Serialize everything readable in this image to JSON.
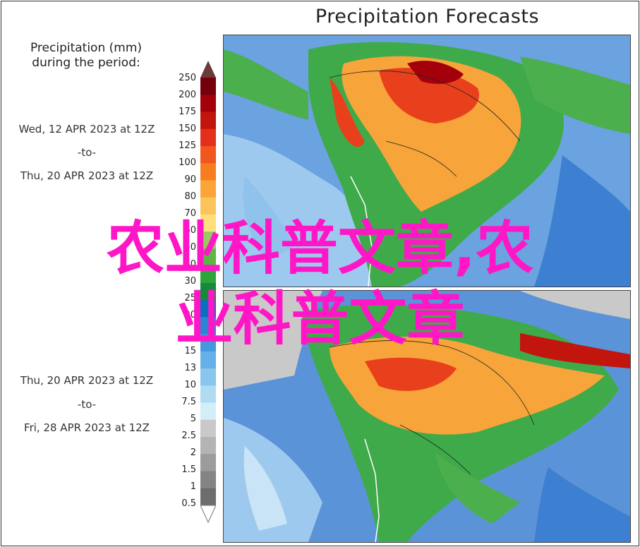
{
  "title": "Precipitation Forecasts",
  "legend": {
    "title_line1": "Precipitation (mm)",
    "title_line2": "during the period:",
    "ticks": [
      "250",
      "200",
      "175",
      "150",
      "125",
      "100",
      "90",
      "80",
      "70",
      "60",
      "50",
      "40",
      "30",
      "25",
      "20",
      "15",
      "13",
      "10",
      "7.5",
      "5",
      "2.5",
      "2",
      "1.5",
      "1",
      "0.5"
    ],
    "colors": [
      "#74000a",
      "#a4000c",
      "#c2150d",
      "#e2301a",
      "#f0561e",
      "#f77e20",
      "#fba437",
      "#fdc45c",
      "#fde07d",
      "#98cc60",
      "#5db744",
      "#2ea53a",
      "#17893b",
      "#0b6fbf",
      "#2c84d3",
      "#4598de",
      "#65b0e8",
      "#88c6ee",
      "#b0dcf3",
      "#d4eef8",
      "#c9c9c9",
      "#b4b4b4",
      "#9c9c9c",
      "#848484",
      "#6d6d6d"
    ]
  },
  "period1": {
    "start": "Wed, 12 APR 2023 at 12Z",
    "sep": "-to-",
    "end": "Thu, 20 APR 2023 at 12Z"
  },
  "period2": {
    "start": "Thu, 20 APR 2023 at 12Z",
    "sep": "-to-",
    "end": "Fri, 28 APR 2023 at 12Z"
  },
  "overlay": {
    "line1": "农业科普文章,农",
    "line2": "业科普文章"
  }
}
